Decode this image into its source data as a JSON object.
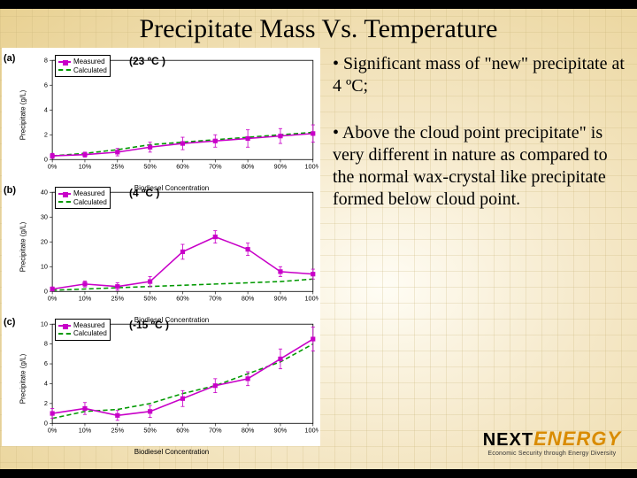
{
  "title": "Precipitate Mass Vs. Temperature",
  "xlabel": "Biodiesel Concentration",
  "ylabel": "Precipitate (g/L)",
  "x_categories": [
    "0%",
    "10%",
    "25%",
    "50%",
    "60%",
    "70%",
    "80%",
    "90%",
    "100%"
  ],
  "legend": {
    "measured": "Measured",
    "calculated": "Calculated"
  },
  "legend_colors": {
    "measured": "#c800c8",
    "calculated": "#009900"
  },
  "panels": [
    {
      "id": "a",
      "label": "(a)",
      "temp_label": "(23 ºC )",
      "ylim": [
        0,
        8
      ],
      "yticks": [
        0,
        2,
        4,
        6,
        8
      ],
      "measured": [
        0.3,
        0.4,
        0.6,
        1.0,
        1.3,
        1.5,
        1.7,
        1.9,
        2.1
      ],
      "calculated": [
        0.3,
        0.5,
        0.8,
        1.2,
        1.4,
        1.6,
        1.8,
        2.0,
        2.2
      ],
      "measured_err": [
        0.2,
        0.2,
        0.3,
        0.4,
        0.5,
        0.5,
        0.7,
        0.6,
        0.7
      ]
    },
    {
      "id": "b",
      "label": "(b)",
      "temp_label": "(4 ºC )",
      "ylim": [
        0,
        40
      ],
      "yticks": [
        0,
        10,
        20,
        30,
        40
      ],
      "measured": [
        1,
        3,
        2,
        4,
        16,
        22,
        17,
        8,
        7
      ],
      "calculated": [
        0.5,
        1,
        1.5,
        2,
        2.5,
        3,
        3.5,
        4,
        5
      ],
      "measured_err": [
        0.8,
        1.2,
        1.5,
        2,
        3,
        2.5,
        2.5,
        2,
        2
      ]
    },
    {
      "id": "c",
      "label": "(c)",
      "temp_label": "(-15 ºC )",
      "ylim": [
        0,
        10
      ],
      "yticks": [
        0,
        2,
        4,
        6,
        8,
        10
      ],
      "measured": [
        1.0,
        1.5,
        0.8,
        1.2,
        2.5,
        3.8,
        4.5,
        6.5,
        8.5
      ],
      "calculated": [
        0.5,
        1.2,
        1.4,
        2.0,
        3.0,
        3.8,
        5.0,
        6.2,
        8.0
      ],
      "measured_err": [
        0.5,
        0.6,
        0.5,
        0.6,
        0.8,
        0.7,
        0.7,
        1.0,
        1.2
      ]
    }
  ],
  "bullets": [
    "Significant mass of \"new\" precipitate at 4 ºC;",
    "Above the cloud point precipitate\" is very different in nature as compared to the normal wax-crystal like precipitate formed below cloud point."
  ],
  "logo": {
    "part1": "NEXT",
    "part2": "ENERGY",
    "sub": "Economic Security through Energy Diversity"
  },
  "colors": {
    "measured": "#c800c8",
    "calculated": "#009900",
    "grid": "#d0d0d0",
    "axis": "#000000"
  }
}
